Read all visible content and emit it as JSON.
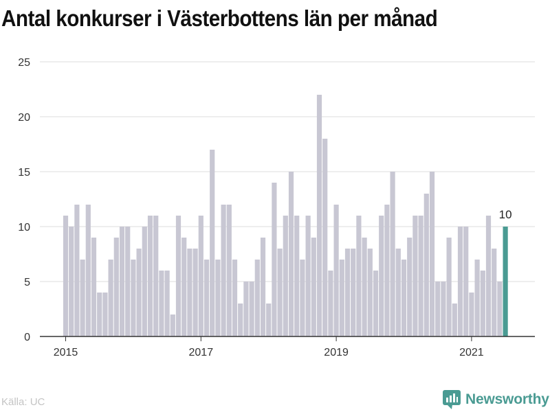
{
  "chart_data": {
    "type": "bar",
    "title": "Antal konkurser i Västerbottens län per månad",
    "ylim": [
      0,
      25
    ],
    "yticks": [
      0,
      5,
      10,
      15,
      20,
      25
    ],
    "xtick_labels": [
      "2015",
      "2017",
      "2019",
      "2021"
    ],
    "grid": "horizontal",
    "highlight_label": "10",
    "start_month": "2015-01",
    "values": [
      11,
      10,
      12,
      7,
      12,
      9,
      4,
      4,
      7,
      9,
      10,
      10,
      7,
      8,
      10,
      11,
      11,
      6,
      6,
      2,
      11,
      9,
      8,
      8,
      11,
      7,
      17,
      7,
      12,
      12,
      7,
      3,
      5,
      5,
      7,
      9,
      3,
      14,
      8,
      11,
      15,
      11,
      7,
      11,
      9,
      22,
      18,
      6,
      12,
      7,
      8,
      8,
      11,
      9,
      8,
      6,
      11,
      12,
      15,
      8,
      7,
      9,
      11,
      11,
      13,
      15,
      5,
      5,
      9,
      3,
      10,
      10,
      4,
      7,
      6,
      11,
      8,
      5,
      10
    ],
    "colors": {
      "bar": "#c8c7d3",
      "highlight": "#4a9b93",
      "grid": "#dcdcdc",
      "axis": "#333333"
    }
  },
  "footer": {
    "source": "Källa: UC",
    "brand": "Newsworthy"
  }
}
